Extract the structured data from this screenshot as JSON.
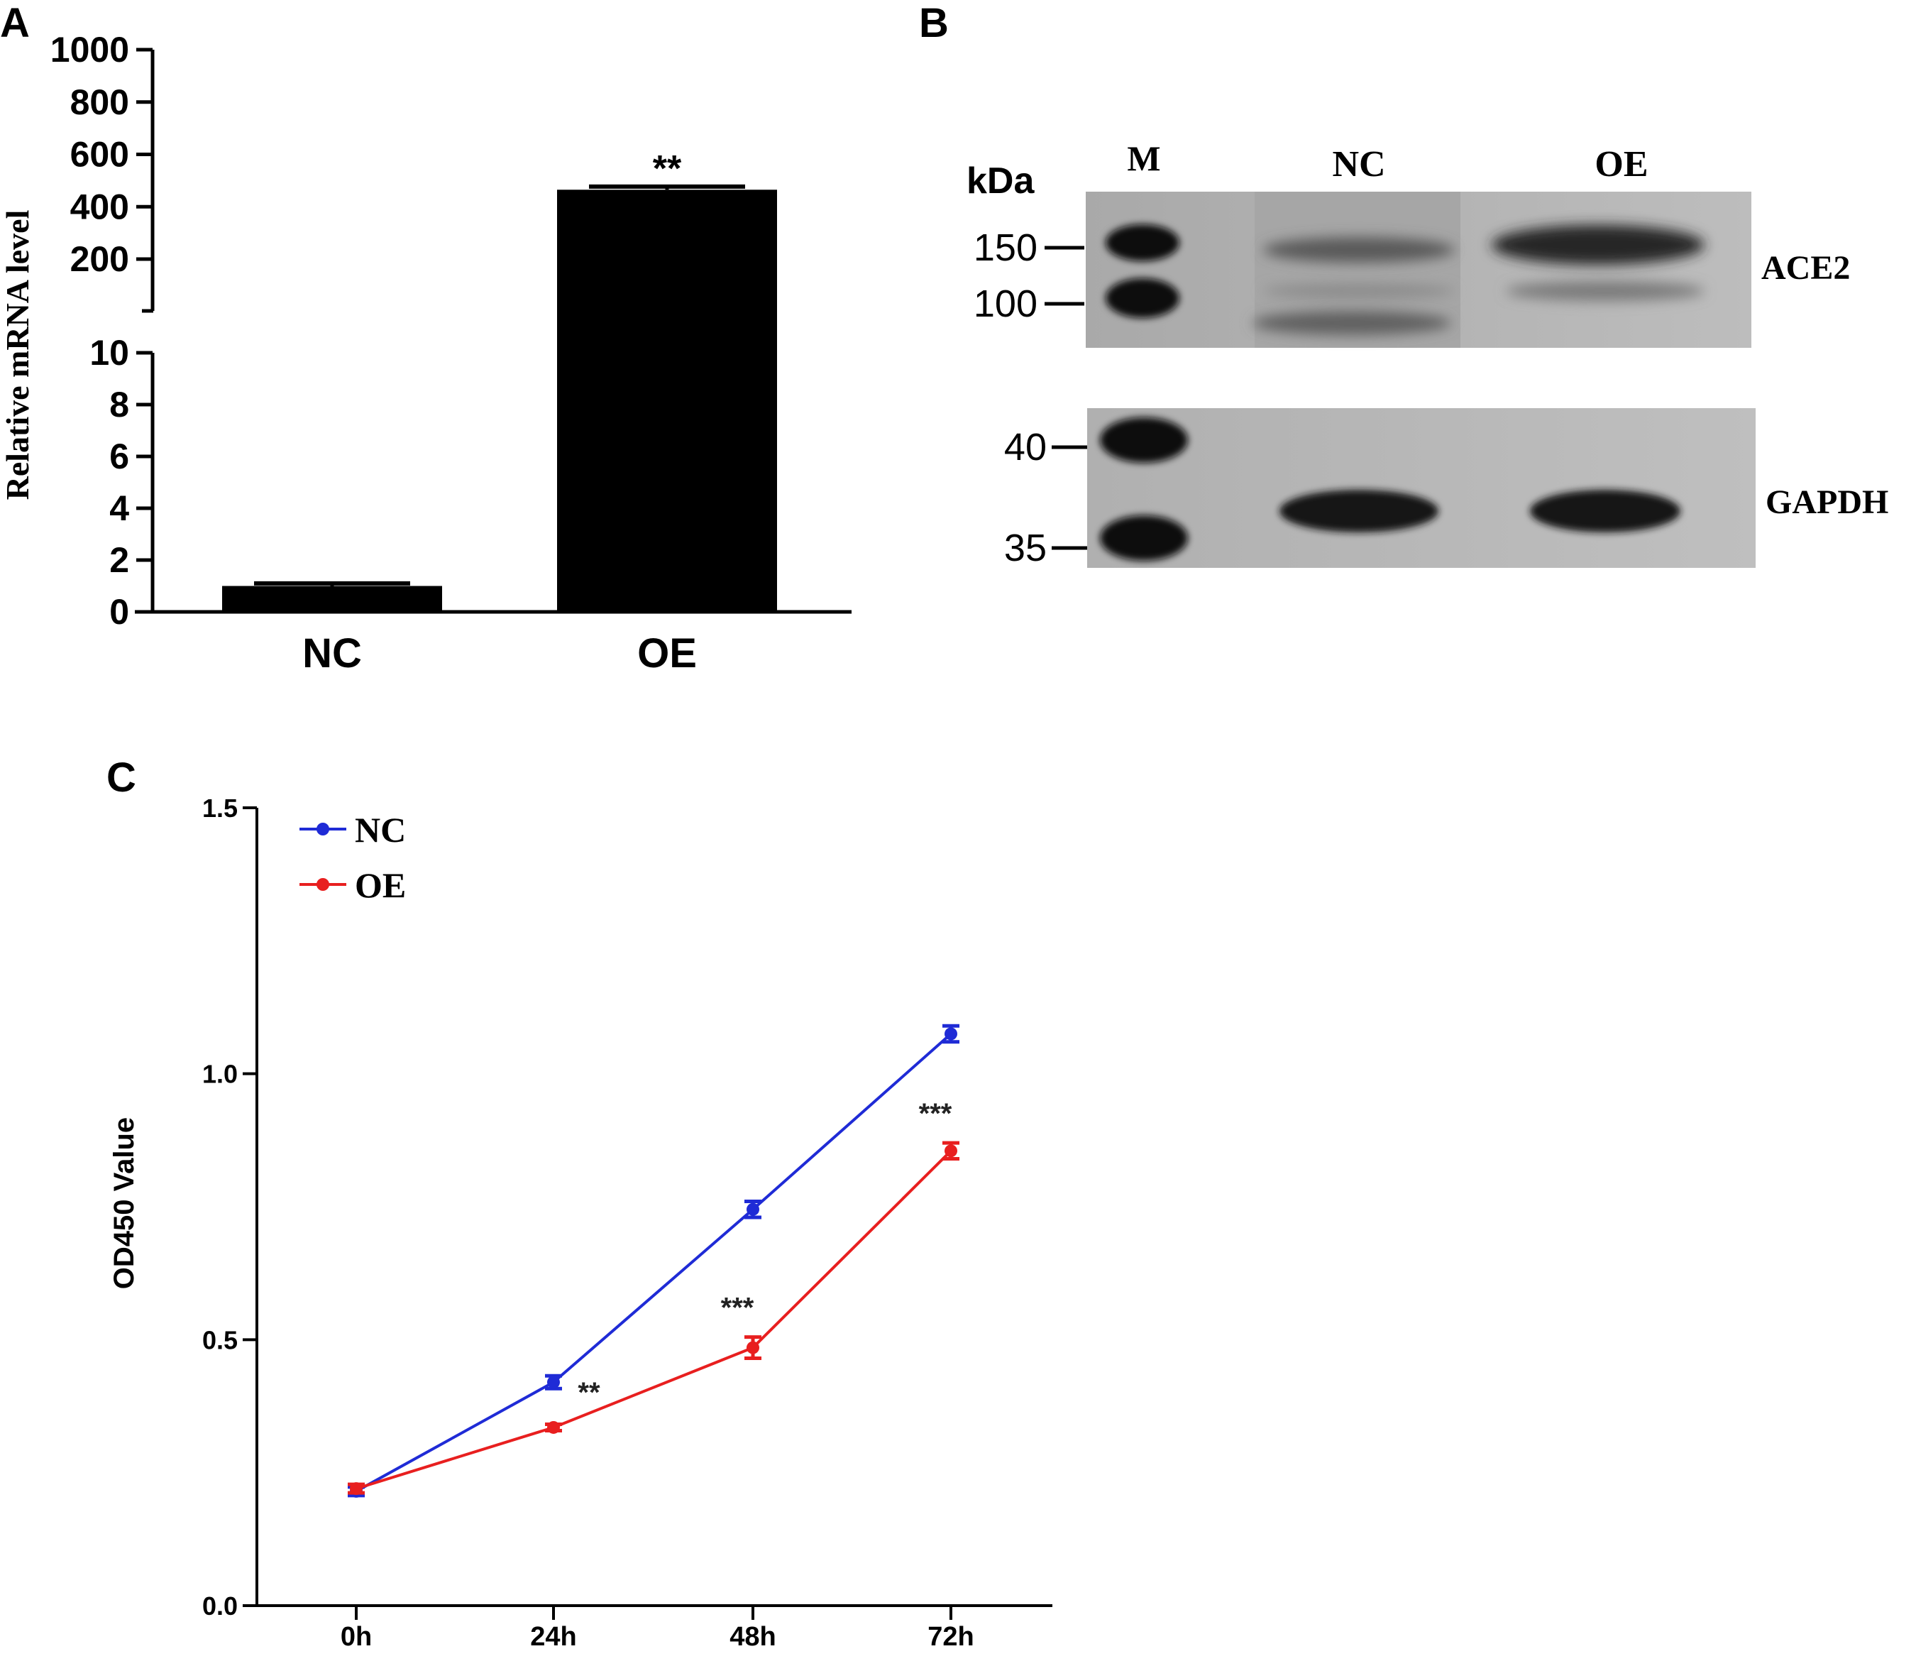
{
  "panels": {
    "A": {
      "letter": "A"
    },
    "B": {
      "letter": "B"
    },
    "C": {
      "letter": "C"
    }
  },
  "chart_data": [
    {
      "panel": "A",
      "type": "bar",
      "ylabel": "Relative mRNA  level",
      "categories": [
        "NC",
        "OE"
      ],
      "values": [
        1.0,
        465
      ],
      "errors": [
        0.1,
        12
      ],
      "annotations": [
        {
          "category": "OE",
          "text": "**"
        }
      ],
      "y_axis_break": true,
      "ylim_lower": [
        0,
        10
      ],
      "ylim_upper": [
        0,
        1000
      ],
      "yticks_lower": [
        0,
        2,
        4,
        6,
        8,
        10
      ],
      "yticks_upper": [
        200,
        400,
        600,
        800,
        1000
      ],
      "bar_color": "#000000"
    },
    {
      "panel": "C",
      "type": "line",
      "ylabel": "OD450 Value",
      "categories": [
        "0h",
        "24h",
        "48h",
        "72h"
      ],
      "ylim": [
        0,
        1.5
      ],
      "yticks": [
        "0.0",
        "0.5",
        "1.0",
        "1.5"
      ],
      "legend_position": "top-left",
      "series": [
        {
          "name": "NC",
          "color": "#1f2bd6",
          "values": [
            0.215,
            0.42,
            0.745,
            1.075
          ],
          "errors": [
            0.008,
            0.012,
            0.015,
            0.015
          ]
        },
        {
          "name": "OE",
          "color": "#e81f1f",
          "values": [
            0.22,
            0.335,
            0.485,
            0.855
          ],
          "errors": [
            0.008,
            0.006,
            0.02,
            0.015
          ]
        }
      ],
      "annotations": [
        {
          "category": "24h",
          "text": "**"
        },
        {
          "category": "48h",
          "text": "***"
        },
        {
          "category": "72h",
          "text": "***"
        }
      ]
    }
  ],
  "blot": {
    "unit_label": "kDa",
    "lanes": [
      "M",
      "NC",
      "OE"
    ],
    "upper": {
      "protein": "ACE2",
      "markers": [
        "150",
        "100"
      ]
    },
    "lower": {
      "protein": "GAPDH",
      "markers": [
        "40",
        "35"
      ]
    }
  }
}
